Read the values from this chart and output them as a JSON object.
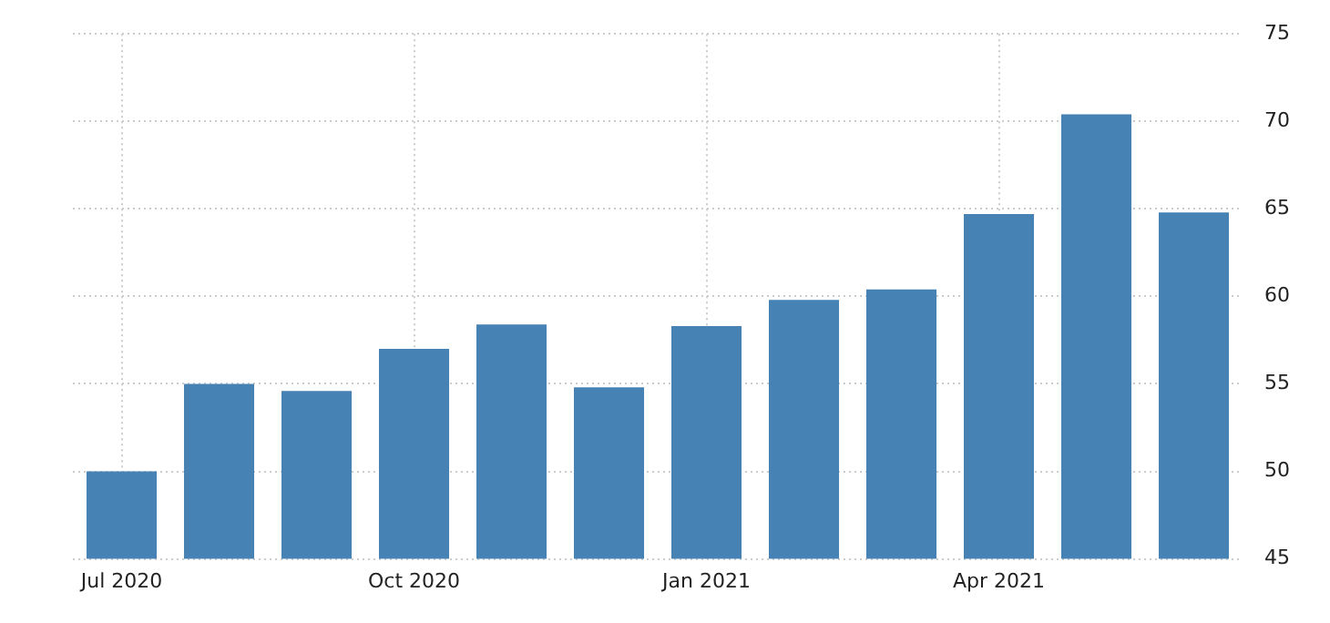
{
  "chart_data": {
    "type": "bar",
    "categories": [
      "Jul 2020",
      null,
      null,
      "Oct 2020",
      null,
      null,
      "Jan 2021",
      null,
      null,
      "Apr 2021",
      null,
      null
    ],
    "values": [
      50.0,
      55.0,
      54.6,
      57.0,
      58.4,
      54.8,
      58.3,
      59.8,
      60.4,
      64.7,
      70.4,
      64.8
    ],
    "color": "#4682b4",
    "ylim": [
      45,
      75
    ],
    "yticks": [
      45,
      50,
      55,
      60,
      65,
      70,
      75
    ],
    "grid": true,
    "legend": false
  }
}
